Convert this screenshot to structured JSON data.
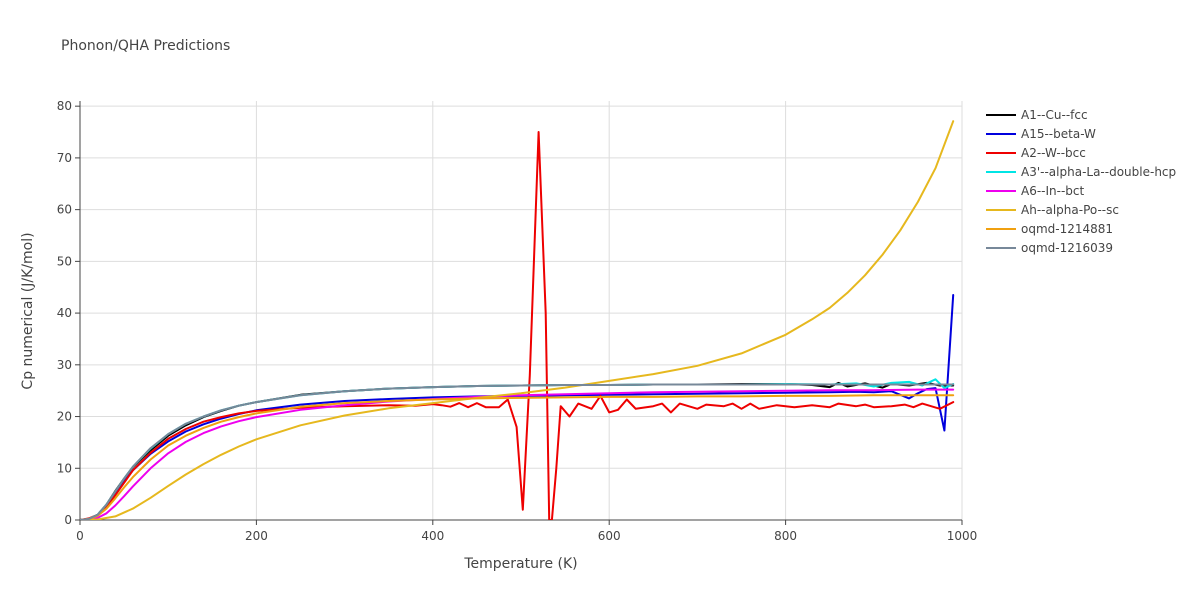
{
  "chart_data": {
    "type": "line",
    "title": "Phonon/QHA Predictions",
    "xlabel": "Temperature (K)",
    "ylabel": "Cp numerical (J/K/mol)",
    "xlim": [
      0,
      1000
    ],
    "ylim": [
      0,
      81
    ],
    "x_ticks": [
      0,
      200,
      400,
      600,
      800,
      1000
    ],
    "y_ticks": [
      0,
      10,
      20,
      30,
      40,
      50,
      60,
      70,
      80
    ],
    "grid": true,
    "legend_position": "right",
    "series": [
      {
        "name": "A1--Cu--fcc",
        "color": "#000000",
        "points": [
          [
            0,
            0
          ],
          [
            10,
            0.2
          ],
          [
            20,
            1
          ],
          [
            30,
            3
          ],
          [
            40,
            5.6
          ],
          [
            50,
            8
          ],
          [
            60,
            10.2
          ],
          [
            80,
            13.5
          ],
          [
            100,
            16.3
          ],
          [
            120,
            18.3
          ],
          [
            140,
            19.9
          ],
          [
            160,
            21.1
          ],
          [
            180,
            22.1
          ],
          [
            200,
            22.8
          ],
          [
            250,
            24.2
          ],
          [
            300,
            24.9
          ],
          [
            350,
            25.4
          ],
          [
            400,
            25.7
          ],
          [
            450,
            25.9
          ],
          [
            500,
            26
          ],
          [
            550,
            26.1
          ],
          [
            600,
            26.1
          ],
          [
            650,
            26.2
          ],
          [
            700,
            26.2
          ],
          [
            750,
            26.3
          ],
          [
            800,
            26.3
          ],
          [
            830,
            26.1
          ],
          [
            850,
            25.7
          ],
          [
            860,
            26.5
          ],
          [
            870,
            25.8
          ],
          [
            890,
            26.4
          ],
          [
            900,
            26
          ],
          [
            910,
            25.6
          ],
          [
            920,
            26.3
          ],
          [
            940,
            26
          ],
          [
            960,
            26.5
          ],
          [
            975,
            26
          ],
          [
            990,
            26
          ]
        ]
      },
      {
        "name": "A15--beta-W",
        "color": "#0000dd",
        "points": [
          [
            0,
            0
          ],
          [
            10,
            0.2
          ],
          [
            20,
            1
          ],
          [
            30,
            2.8
          ],
          [
            40,
            5.1
          ],
          [
            50,
            7.5
          ],
          [
            60,
            9.6
          ],
          [
            80,
            12.8
          ],
          [
            100,
            15.2
          ],
          [
            120,
            17.1
          ],
          [
            140,
            18.5
          ],
          [
            160,
            19.6
          ],
          [
            180,
            20.5
          ],
          [
            200,
            21.2
          ],
          [
            250,
            22.3
          ],
          [
            300,
            23
          ],
          [
            350,
            23.4
          ],
          [
            400,
            23.7
          ],
          [
            450,
            23.9
          ],
          [
            500,
            24
          ],
          [
            550,
            24.1
          ],
          [
            600,
            24.2
          ],
          [
            650,
            24.3
          ],
          [
            700,
            24.4
          ],
          [
            750,
            24.5
          ],
          [
            800,
            24.6
          ],
          [
            850,
            24.7
          ],
          [
            880,
            24.8
          ],
          [
            900,
            24.7
          ],
          [
            920,
            24.9
          ],
          [
            940,
            23.5
          ],
          [
            950,
            24.5
          ],
          [
            960,
            25.3
          ],
          [
            970,
            25.5
          ],
          [
            980,
            17.3
          ],
          [
            990,
            43.5
          ]
        ]
      },
      {
        "name": "A2--W--bcc",
        "color": "#ee0000",
        "points": [
          [
            0,
            0
          ],
          [
            10,
            0.3
          ],
          [
            20,
            1
          ],
          [
            30,
            2.5
          ],
          [
            40,
            4.8
          ],
          [
            50,
            7.2
          ],
          [
            60,
            9.6
          ],
          [
            80,
            13
          ],
          [
            100,
            15.7
          ],
          [
            120,
            17.6
          ],
          [
            140,
            19
          ],
          [
            160,
            19.9
          ],
          [
            180,
            20.6
          ],
          [
            200,
            21.1
          ],
          [
            250,
            21.7
          ],
          [
            300,
            22
          ],
          [
            350,
            22.2
          ],
          [
            380,
            22.1
          ],
          [
            400,
            22.4
          ],
          [
            410,
            22.2
          ],
          [
            420,
            21.9
          ],
          [
            430,
            22.6
          ],
          [
            440,
            21.8
          ],
          [
            450,
            22.6
          ],
          [
            460,
            21.8
          ],
          [
            475,
            21.8
          ],
          [
            485,
            23.3
          ],
          [
            495,
            18
          ],
          [
            502,
            2
          ],
          [
            510,
            28
          ],
          [
            520,
            75
          ],
          [
            528,
            40
          ],
          [
            532,
            0
          ],
          [
            535,
            0
          ],
          [
            540,
            10
          ],
          [
            545,
            22
          ],
          [
            555,
            20
          ],
          [
            565,
            22.5
          ],
          [
            580,
            21.5
          ],
          [
            590,
            24
          ],
          [
            600,
            20.8
          ],
          [
            610,
            21.3
          ],
          [
            620,
            23.3
          ],
          [
            630,
            21.5
          ],
          [
            650,
            22
          ],
          [
            660,
            22.5
          ],
          [
            670,
            20.8
          ],
          [
            680,
            22.5
          ],
          [
            700,
            21.5
          ],
          [
            710,
            22.3
          ],
          [
            730,
            22
          ],
          [
            740,
            22.5
          ],
          [
            750,
            21.5
          ],
          [
            760,
            22.5
          ],
          [
            770,
            21.5
          ],
          [
            790,
            22.2
          ],
          [
            810,
            21.8
          ],
          [
            830,
            22.2
          ],
          [
            850,
            21.8
          ],
          [
            860,
            22.5
          ],
          [
            880,
            22
          ],
          [
            890,
            22.3
          ],
          [
            900,
            21.8
          ],
          [
            920,
            22
          ],
          [
            935,
            22.3
          ],
          [
            945,
            21.8
          ],
          [
            955,
            22.5
          ],
          [
            965,
            22
          ],
          [
            975,
            21.5
          ],
          [
            990,
            22.8
          ]
        ]
      },
      {
        "name": "A3'--alpha-La--double-hcp",
        "color": "#00e5e5",
        "points": [
          [
            0,
            0
          ],
          [
            10,
            0.2
          ],
          [
            20,
            1
          ],
          [
            30,
            3
          ],
          [
            40,
            5.5
          ],
          [
            50,
            8
          ],
          [
            60,
            10.3
          ],
          [
            80,
            13.8
          ],
          [
            100,
            16.6
          ],
          [
            120,
            18.6
          ],
          [
            140,
            20
          ],
          [
            160,
            21.2
          ],
          [
            180,
            22.1
          ],
          [
            200,
            22.8
          ],
          [
            250,
            24.1
          ],
          [
            300,
            24.9
          ],
          [
            350,
            25.4
          ],
          [
            400,
            25.7
          ],
          [
            450,
            25.9
          ],
          [
            500,
            26
          ],
          [
            550,
            26.1
          ],
          [
            600,
            26.1
          ],
          [
            650,
            26.2
          ],
          [
            700,
            26.2
          ],
          [
            750,
            26.2
          ],
          [
            800,
            26.3
          ],
          [
            850,
            26.2
          ],
          [
            880,
            26.4
          ],
          [
            900,
            25.8
          ],
          [
            920,
            26.5
          ],
          [
            940,
            26.7
          ],
          [
            955,
            26
          ],
          [
            970,
            27.2
          ],
          [
            980,
            25.5
          ],
          [
            990,
            26.3
          ]
        ]
      },
      {
        "name": "A6--In--bct",
        "color": "#ee00ee",
        "points": [
          [
            0,
            0
          ],
          [
            10,
            0.1
          ],
          [
            20,
            0.4
          ],
          [
            30,
            1.3
          ],
          [
            40,
            2.8
          ],
          [
            50,
            4.6
          ],
          [
            60,
            6.5
          ],
          [
            80,
            10
          ],
          [
            100,
            12.9
          ],
          [
            120,
            15.1
          ],
          [
            140,
            16.8
          ],
          [
            160,
            18.1
          ],
          [
            180,
            19.1
          ],
          [
            200,
            19.9
          ],
          [
            250,
            21.3
          ],
          [
            300,
            22.2
          ],
          [
            350,
            22.9
          ],
          [
            400,
            23.4
          ],
          [
            450,
            23.8
          ],
          [
            500,
            24.1
          ],
          [
            550,
            24.3
          ],
          [
            600,
            24.5
          ],
          [
            650,
            24.7
          ],
          [
            700,
            24.8
          ],
          [
            750,
            24.9
          ],
          [
            800,
            25
          ],
          [
            850,
            25.1
          ],
          [
            900,
            25.1
          ],
          [
            950,
            25.2
          ],
          [
            990,
            25.2
          ]
        ]
      },
      {
        "name": "Ah--alpha-Po--sc",
        "color": "#e6b81e",
        "points": [
          [
            0,
            0
          ],
          [
            20,
            0.1
          ],
          [
            40,
            0.7
          ],
          [
            60,
            2.2
          ],
          [
            80,
            4.3
          ],
          [
            100,
            6.6
          ],
          [
            120,
            8.8
          ],
          [
            140,
            10.8
          ],
          [
            160,
            12.6
          ],
          [
            180,
            14.2
          ],
          [
            200,
            15.6
          ],
          [
            250,
            18.3
          ],
          [
            300,
            20.2
          ],
          [
            350,
            21.6
          ],
          [
            400,
            22.6
          ],
          [
            450,
            23.6
          ],
          [
            500,
            24.5
          ],
          [
            550,
            25.6
          ],
          [
            600,
            26.9
          ],
          [
            650,
            28.2
          ],
          [
            700,
            29.8
          ],
          [
            750,
            32.2
          ],
          [
            800,
            35.8
          ],
          [
            830,
            38.8
          ],
          [
            850,
            41
          ],
          [
            870,
            43.9
          ],
          [
            890,
            47.3
          ],
          [
            910,
            51.3
          ],
          [
            930,
            56
          ],
          [
            950,
            61.5
          ],
          [
            970,
            68
          ],
          [
            990,
            77.1
          ]
        ]
      },
      {
        "name": "oqmd-1214881",
        "color": "#f0a010",
        "points": [
          [
            0,
            0
          ],
          [
            10,
            0.2
          ],
          [
            20,
            0.8
          ],
          [
            30,
            2.2
          ],
          [
            40,
            4.2
          ],
          [
            50,
            6.3
          ],
          [
            60,
            8.3
          ],
          [
            80,
            11.7
          ],
          [
            100,
            14.4
          ],
          [
            120,
            16.3
          ],
          [
            140,
            17.8
          ],
          [
            160,
            19
          ],
          [
            180,
            19.9
          ],
          [
            200,
            20.6
          ],
          [
            250,
            21.9
          ],
          [
            300,
            22.6
          ],
          [
            350,
            23
          ],
          [
            400,
            23.3
          ],
          [
            450,
            23.5
          ],
          [
            500,
            23.6
          ],
          [
            550,
            23.7
          ],
          [
            600,
            23.8
          ],
          [
            650,
            23.8
          ],
          [
            700,
            23.9
          ],
          [
            750,
            23.9
          ],
          [
            800,
            24
          ],
          [
            850,
            24
          ],
          [
            900,
            24.1
          ],
          [
            950,
            24.1
          ],
          [
            990,
            24.1
          ]
        ]
      },
      {
        "name": "oqmd-1216039",
        "color": "#778899",
        "points": [
          [
            0,
            0
          ],
          [
            10,
            0.2
          ],
          [
            20,
            1
          ],
          [
            30,
            3
          ],
          [
            40,
            5.5
          ],
          [
            50,
            8
          ],
          [
            60,
            10.3
          ],
          [
            80,
            13.9
          ],
          [
            100,
            16.6
          ],
          [
            120,
            18.6
          ],
          [
            140,
            20
          ],
          [
            160,
            21.2
          ],
          [
            180,
            22.1
          ],
          [
            200,
            22.8
          ],
          [
            250,
            24.1
          ],
          [
            300,
            24.9
          ],
          [
            350,
            25.4
          ],
          [
            400,
            25.7
          ],
          [
            450,
            25.9
          ],
          [
            500,
            26
          ],
          [
            550,
            26.1
          ],
          [
            600,
            26.1
          ],
          [
            650,
            26.2
          ],
          [
            700,
            26.2
          ],
          [
            750,
            26.2
          ],
          [
            800,
            26.2
          ],
          [
            850,
            26.2
          ],
          [
            900,
            26.2
          ],
          [
            950,
            26.2
          ],
          [
            990,
            26.2
          ]
        ]
      }
    ]
  }
}
